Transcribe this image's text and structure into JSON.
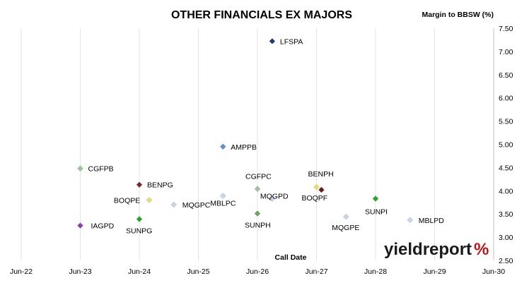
{
  "chart_data": {
    "type": "scatter",
    "title": "OTHER FINANCIALS EX MAJORS",
    "xlabel": "Call Date",
    "ylabel": "Margin to BBSW (%)",
    "x_ticks": [
      "Jun-22",
      "Jun-23",
      "Jun-24",
      "Jun-25",
      "Jun-26",
      "Jun-27",
      "Jun-28",
      "Jun-29",
      "Jun-30"
    ],
    "xlim": [
      "Jun-22",
      "Jun-30"
    ],
    "y_ticks": [
      "2.50",
      "3.00",
      "3.50",
      "4.00",
      "4.50",
      "5.00",
      "5.50",
      "6.00",
      "6.50",
      "7.00",
      "7.50"
    ],
    "ylim": [
      2.5,
      7.5
    ],
    "grid": "vertical",
    "points": [
      {
        "label": "LFSPA",
        "x": "2026-09",
        "y": 7.22,
        "color": "#1f3b6e"
      },
      {
        "label": "AMPPB",
        "x": "2025-11",
        "y": 4.95,
        "color": "#5b8ed6"
      },
      {
        "label": "CGFPB",
        "x": "2023-06",
        "y": 4.48,
        "color": "#9dc49d"
      },
      {
        "label": "BENPG",
        "x": "2024-06",
        "y": 4.13,
        "color": "#7a2a2a"
      },
      {
        "label": "CGFPC",
        "x": "2026-06",
        "y": 4.04,
        "color": "#9dc49d"
      },
      {
        "label": "BENPH",
        "x": "2027-06",
        "y": 4.08,
        "color": "#e6e070"
      },
      {
        "label": "BOQPF",
        "x": "2027-07",
        "y": 4.02,
        "color": "#6b1a1a"
      },
      {
        "label": "MQGPD",
        "x": "2026-09",
        "y": 3.83,
        "color": "#c9d6ea"
      },
      {
        "label": "MBLPC",
        "x": "2025-11",
        "y": 3.89,
        "color": "#c9d6ea"
      },
      {
        "label": "BOQPE",
        "x": "2024-08",
        "y": 3.8,
        "color": "#e6e070"
      },
      {
        "label": "MQGPC",
        "x": "2025-01",
        "y": 3.7,
        "color": "#c9d6ea"
      },
      {
        "label": "SUNPI",
        "x": "2028-06",
        "y": 3.83,
        "color": "#22aa22"
      },
      {
        "label": "SUNPH",
        "x": "2026-06",
        "y": 3.51,
        "color": "#66aa55"
      },
      {
        "label": "MQGPE",
        "x": "2027-12",
        "y": 3.44,
        "color": "#c9d6ea"
      },
      {
        "label": "MBLPD",
        "x": "2029-01",
        "y": 3.37,
        "color": "#c9d6ea"
      },
      {
        "label": "SUNPG",
        "x": "2024-06",
        "y": 3.39,
        "color": "#22aa22"
      },
      {
        "label": "IAGPD",
        "x": "2023-06",
        "y": 3.25,
        "color": "#8a3fb0"
      }
    ]
  },
  "branding": {
    "logo_text": "yieldreport",
    "logo_symbol": "%",
    "logo_text_color": "#1a1a1a",
    "logo_symbol_color": "#c0141b"
  }
}
